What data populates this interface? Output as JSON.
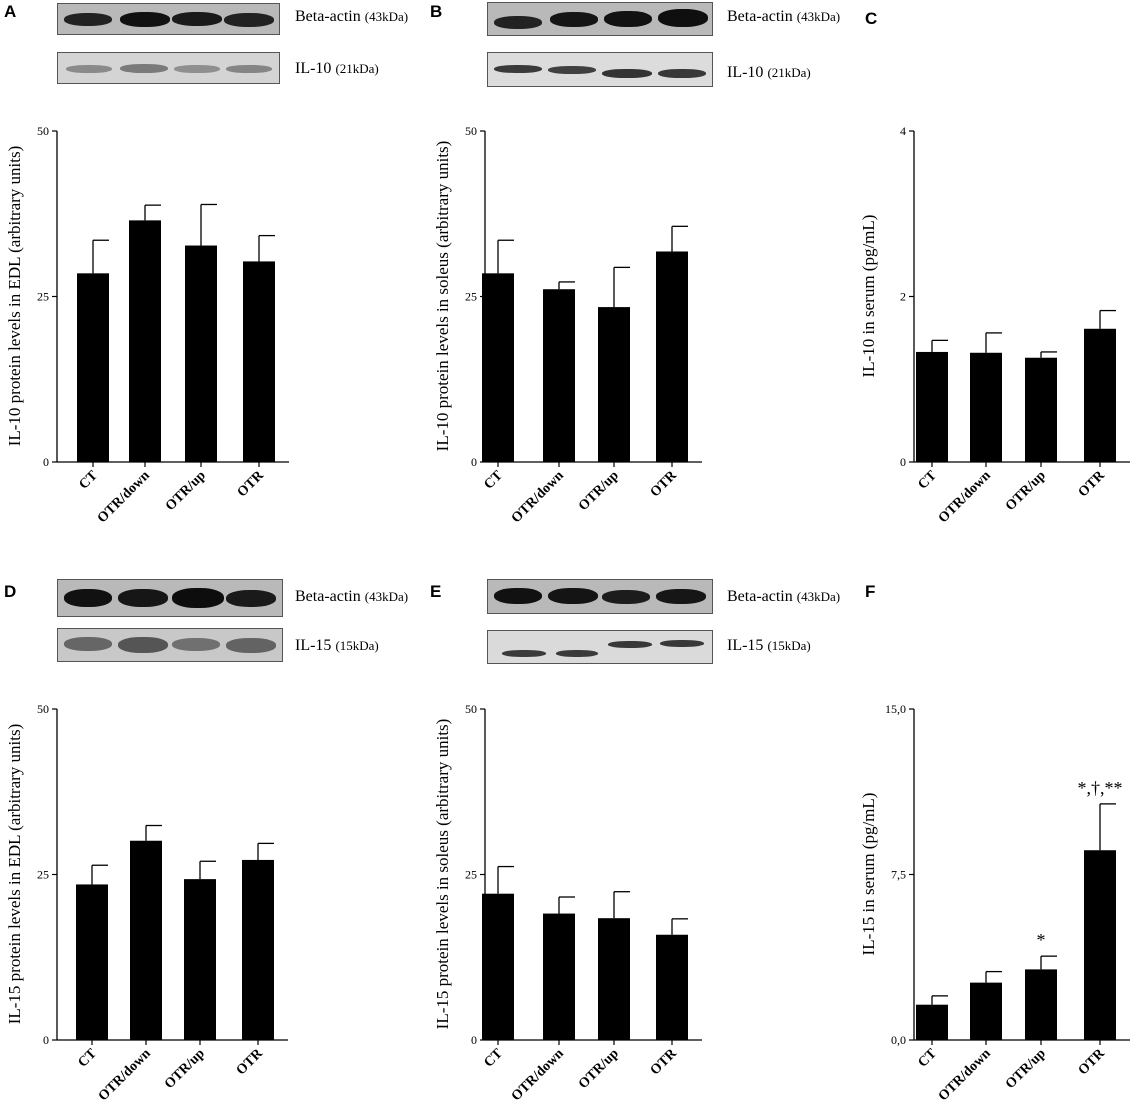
{
  "panels": [
    {
      "letter": "A",
      "blots": [
        {
          "name": "Beta-actin",
          "kda": "(43kDa)"
        },
        {
          "name": "IL-10",
          "kda": "(21kDa)"
        }
      ],
      "chart": {
        "type": "bar",
        "ylabel": "IL-10 protein levels in EDL (arbitrary units)",
        "categories": [
          "CT",
          "OTR/down",
          "OTR/up",
          "OTR"
        ],
        "values": [
          28.5,
          36.5,
          32.7,
          30.3
        ],
        "errors": [
          5.0,
          2.3,
          6.2,
          3.9
        ],
        "ylim": [
          0,
          50
        ],
        "ticks": [
          0,
          25,
          50
        ],
        "tick_labels": [
          "0",
          "25",
          "50"
        ],
        "annotations": [
          "",
          "",
          "",
          ""
        ]
      }
    },
    {
      "letter": "B",
      "blots": [
        {
          "name": "Beta-actin",
          "kda": "(43kDa)"
        },
        {
          "name": "IL-10",
          "kda": "(21kDa)"
        }
      ],
      "chart": {
        "type": "bar",
        "ylabel": "IL-10 protein levels in soleus (arbitrary units)",
        "categories": [
          "CT",
          "OTR/down",
          "OTR/up",
          "OTR"
        ],
        "values": [
          28.5,
          26.1,
          23.4,
          31.8
        ],
        "errors": [
          5.0,
          1.1,
          6.0,
          3.8
        ],
        "ylim": [
          0,
          50
        ],
        "ticks": [
          0,
          25,
          50
        ],
        "tick_labels": [
          "0",
          "25",
          "50"
        ],
        "annotations": [
          "",
          "",
          "",
          ""
        ]
      }
    },
    {
      "letter": "C",
      "blots": [],
      "chart": {
        "type": "bar",
        "ylabel": "IL-10 in serum (pg/mL)",
        "categories": [
          "CT",
          "OTR/down",
          "OTR/up",
          "OTR"
        ],
        "values": [
          1.33,
          1.32,
          1.26,
          1.61
        ],
        "errors": [
          0.14,
          0.24,
          0.07,
          0.22
        ],
        "ylim": [
          0,
          4
        ],
        "ticks": [
          0,
          2,
          4
        ],
        "tick_labels": [
          "0",
          "2",
          "4"
        ],
        "annotations": [
          "",
          "",
          "",
          ""
        ]
      }
    },
    {
      "letter": "D",
      "blots": [
        {
          "name": "Beta-actin",
          "kda": "(43kDa)"
        },
        {
          "name": "IL-15",
          "kda": "(15kDa)"
        }
      ],
      "chart": {
        "type": "bar",
        "ylabel": "IL-15 protein levels in EDL (arbitrary units)",
        "categories": [
          "CT",
          "OTR/down",
          "OTR/up",
          "OTR"
        ],
        "values": [
          23.5,
          30.1,
          24.3,
          27.2
        ],
        "errors": [
          2.9,
          2.3,
          2.7,
          2.5
        ],
        "ylim": [
          0,
          50
        ],
        "ticks": [
          0,
          25,
          50
        ],
        "tick_labels": [
          "0",
          "25",
          "50"
        ],
        "annotations": [
          "",
          "",
          "",
          ""
        ]
      }
    },
    {
      "letter": "E",
      "blots": [
        {
          "name": "Beta-actin",
          "kda": "(43kDa)"
        },
        {
          "name": "IL-15",
          "kda": "(15kDa)"
        }
      ],
      "chart": {
        "type": "bar",
        "ylabel": "IL-15 protein levels in soleus (arbitrary units)",
        "categories": [
          "CT",
          "OTR/down",
          "OTR/up",
          "OTR"
        ],
        "values": [
          22.1,
          19.1,
          18.4,
          15.9
        ],
        "errors": [
          4.1,
          2.5,
          4.0,
          2.4
        ],
        "ylim": [
          0,
          50
        ],
        "ticks": [
          0,
          25,
          50
        ],
        "tick_labels": [
          "0",
          "25",
          "50"
        ],
        "annotations": [
          "",
          "",
          "",
          ""
        ]
      }
    },
    {
      "letter": "F",
      "blots": [],
      "chart": {
        "type": "bar",
        "ylabel": "IL-15 in serum (pg/mL)",
        "categories": [
          "CT",
          "OTR/down",
          "OTR/up",
          "OTR"
        ],
        "values": [
          1.6,
          2.6,
          3.2,
          8.6
        ],
        "errors": [
          0.4,
          0.5,
          0.6,
          2.1
        ],
        "ylim": [
          0,
          15
        ],
        "ticks": [
          0,
          7.5,
          15
        ],
        "tick_labels": [
          "0,0",
          "7,5",
          "15,0"
        ],
        "annotations": [
          "",
          "",
          "*",
          "*,†,**"
        ]
      }
    }
  ]
}
